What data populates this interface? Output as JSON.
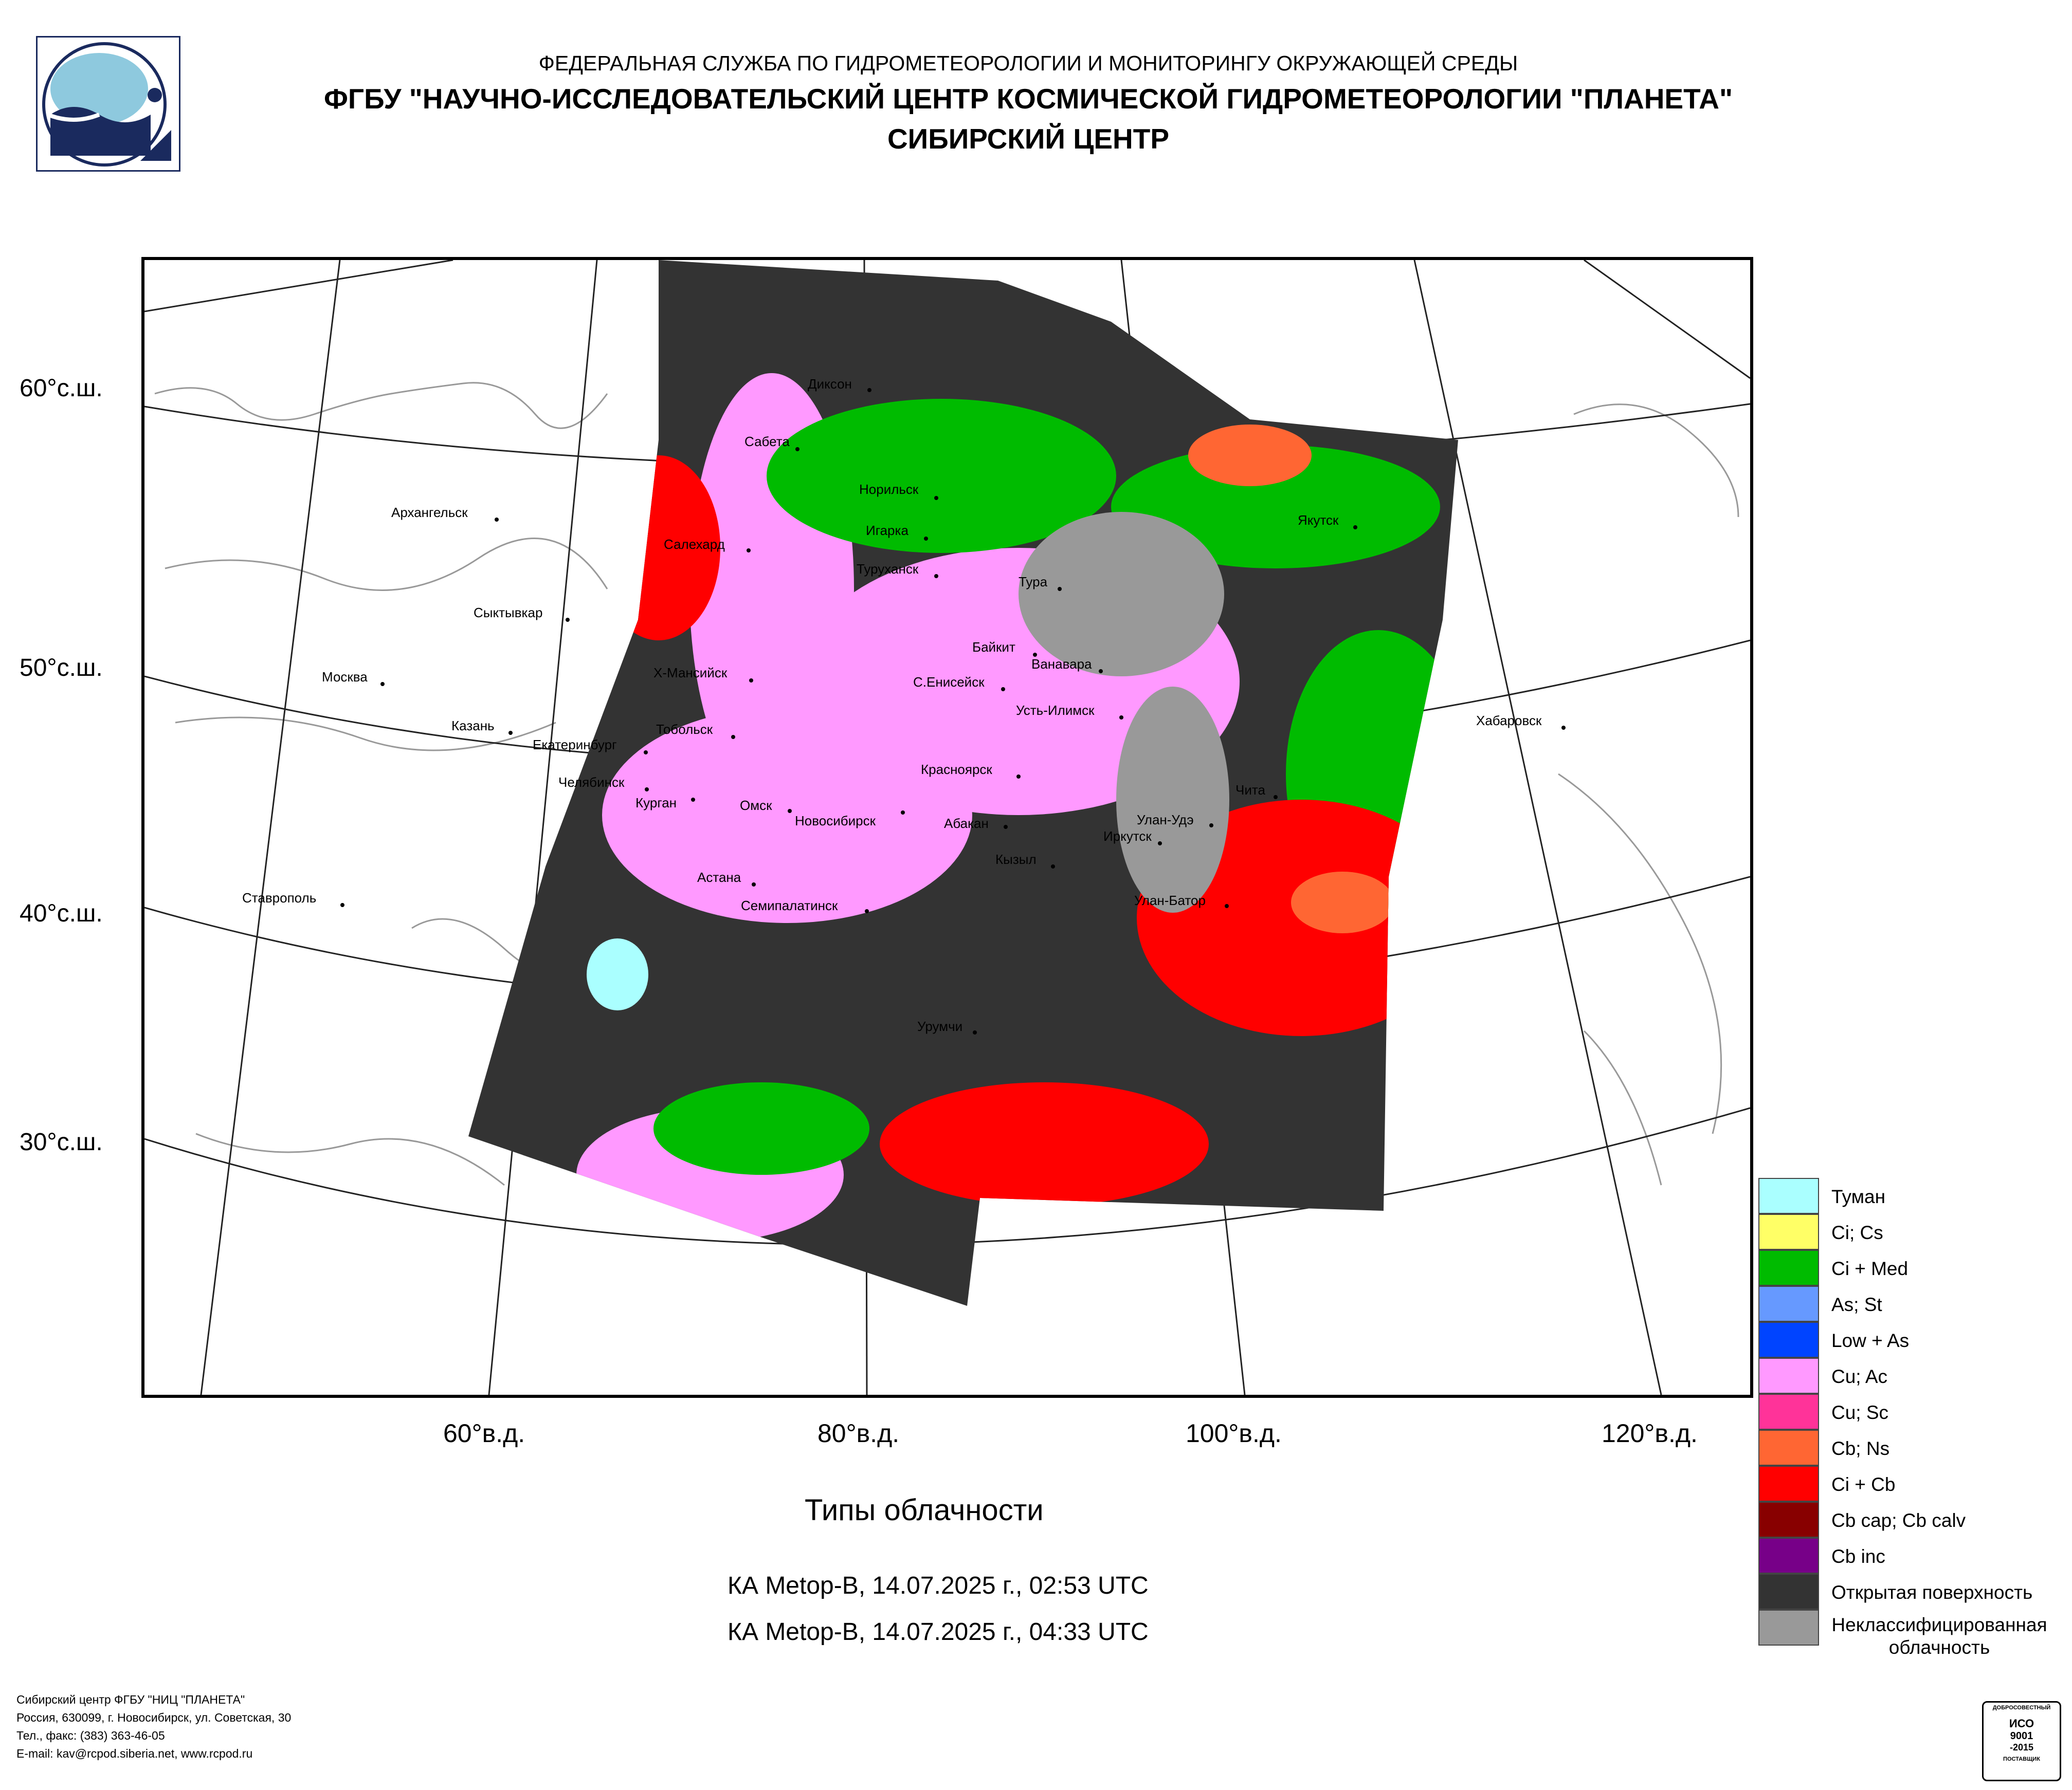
{
  "header": {
    "line1": "ФЕДЕРАЛЬНАЯ СЛУЖБА ПО ГИДРОМЕТЕОРОЛОГИИ И МОНИТОРИНГУ ОКРУЖАЮЩЕЙ СРЕДЫ",
    "line2": "ФГБУ \"НАУЧНО-ИССЛЕДОВАТЕЛЬСКИЙ ЦЕНТР КОСМИЧЕСКОЙ ГИДРОМЕТЕОРОЛОГИИ \"ПЛАНЕТА\"",
    "line3": "СИБИРСКИЙ ЦЕНТР"
  },
  "map": {
    "lat_labels": [
      "60°с.ш.",
      "50°с.ш.",
      "40°с.ш.",
      "30°с.ш."
    ],
    "lon_labels": [
      "60°в.д.",
      "80°в.д.",
      "100°в.д.",
      "120°в.д."
    ],
    "cities": [
      "Диксон",
      "Сабета",
      "Норильск",
      "Архангельск",
      "Игарка",
      "Салехард",
      "Туруханск",
      "Якутск",
      "Тура",
      "Сыктывкар",
      "Байкит",
      "Ванавара",
      "Х-Мансийск",
      "Москва",
      "С.Енисейск",
      "Усть-Илимск",
      "Хабаровск",
      "Казань",
      "Тобольск",
      "Екатеринбург",
      "Красноярск",
      "Челябинск",
      "Чита",
      "Курган",
      "Омск",
      "Новосибирск",
      "Абакан",
      "Улан-Удэ",
      "Иркутск",
      "Кызыл",
      "Астана",
      "Ставрополь",
      "Улан-Батор",
      "Семипалатинск",
      "Урумчи"
    ]
  },
  "title": "Типы облачности",
  "satellite_passes": [
    "КА Metop-B, 14.07.2025 г., 02:53 UTC",
    "КА Metop-B, 14.07.2025 г., 04:33 UTC"
  ],
  "legend": [
    {
      "label": "Туман",
      "color": "#aaffff"
    },
    {
      "label": "Ci; Cs",
      "color": "#ffff66"
    },
    {
      "label": "Ci + Med",
      "color": "#00bb00"
    },
    {
      "label": "As; St",
      "color": "#6699ff"
    },
    {
      "label": "Low + As",
      "color": "#0044ff"
    },
    {
      "label": "Cu; Ac",
      "color": "#ff99ff"
    },
    {
      "label": "Cu; Sc",
      "color": "#ff3399"
    },
    {
      "label": "Cb; Ns",
      "color": "#ff6633"
    },
    {
      "label": "Ci + Cb",
      "color": "#ff0000"
    },
    {
      "label": "Cb cap; Cb calv",
      "color": "#880000"
    },
    {
      "label": "Cb inc",
      "color": "#770088"
    },
    {
      "label": "Открытая поверхность",
      "color": "#333333"
    },
    {
      "label": "Неклассифицированная облачность",
      "color": "#999999"
    }
  ],
  "footer": {
    "line1": "Сибирский центр ФГБУ \"НИЦ \"ПЛАНЕТА\"",
    "line2": "Россия, 630099, г. Новосибирск, ул. Советская, 30",
    "line3": "Тел., факс: (383) 363-46-05",
    "line4": "E-mail: kav@rcpod.siberia.net, www.rcpod.ru"
  },
  "iso_badge": {
    "top": "ДОБРОСОВЕСТНЫЙ",
    "mid1": "ИСО",
    "mid2": "9001",
    "mid3": "-2015",
    "bottom": "ПОСТАВЩИК"
  }
}
